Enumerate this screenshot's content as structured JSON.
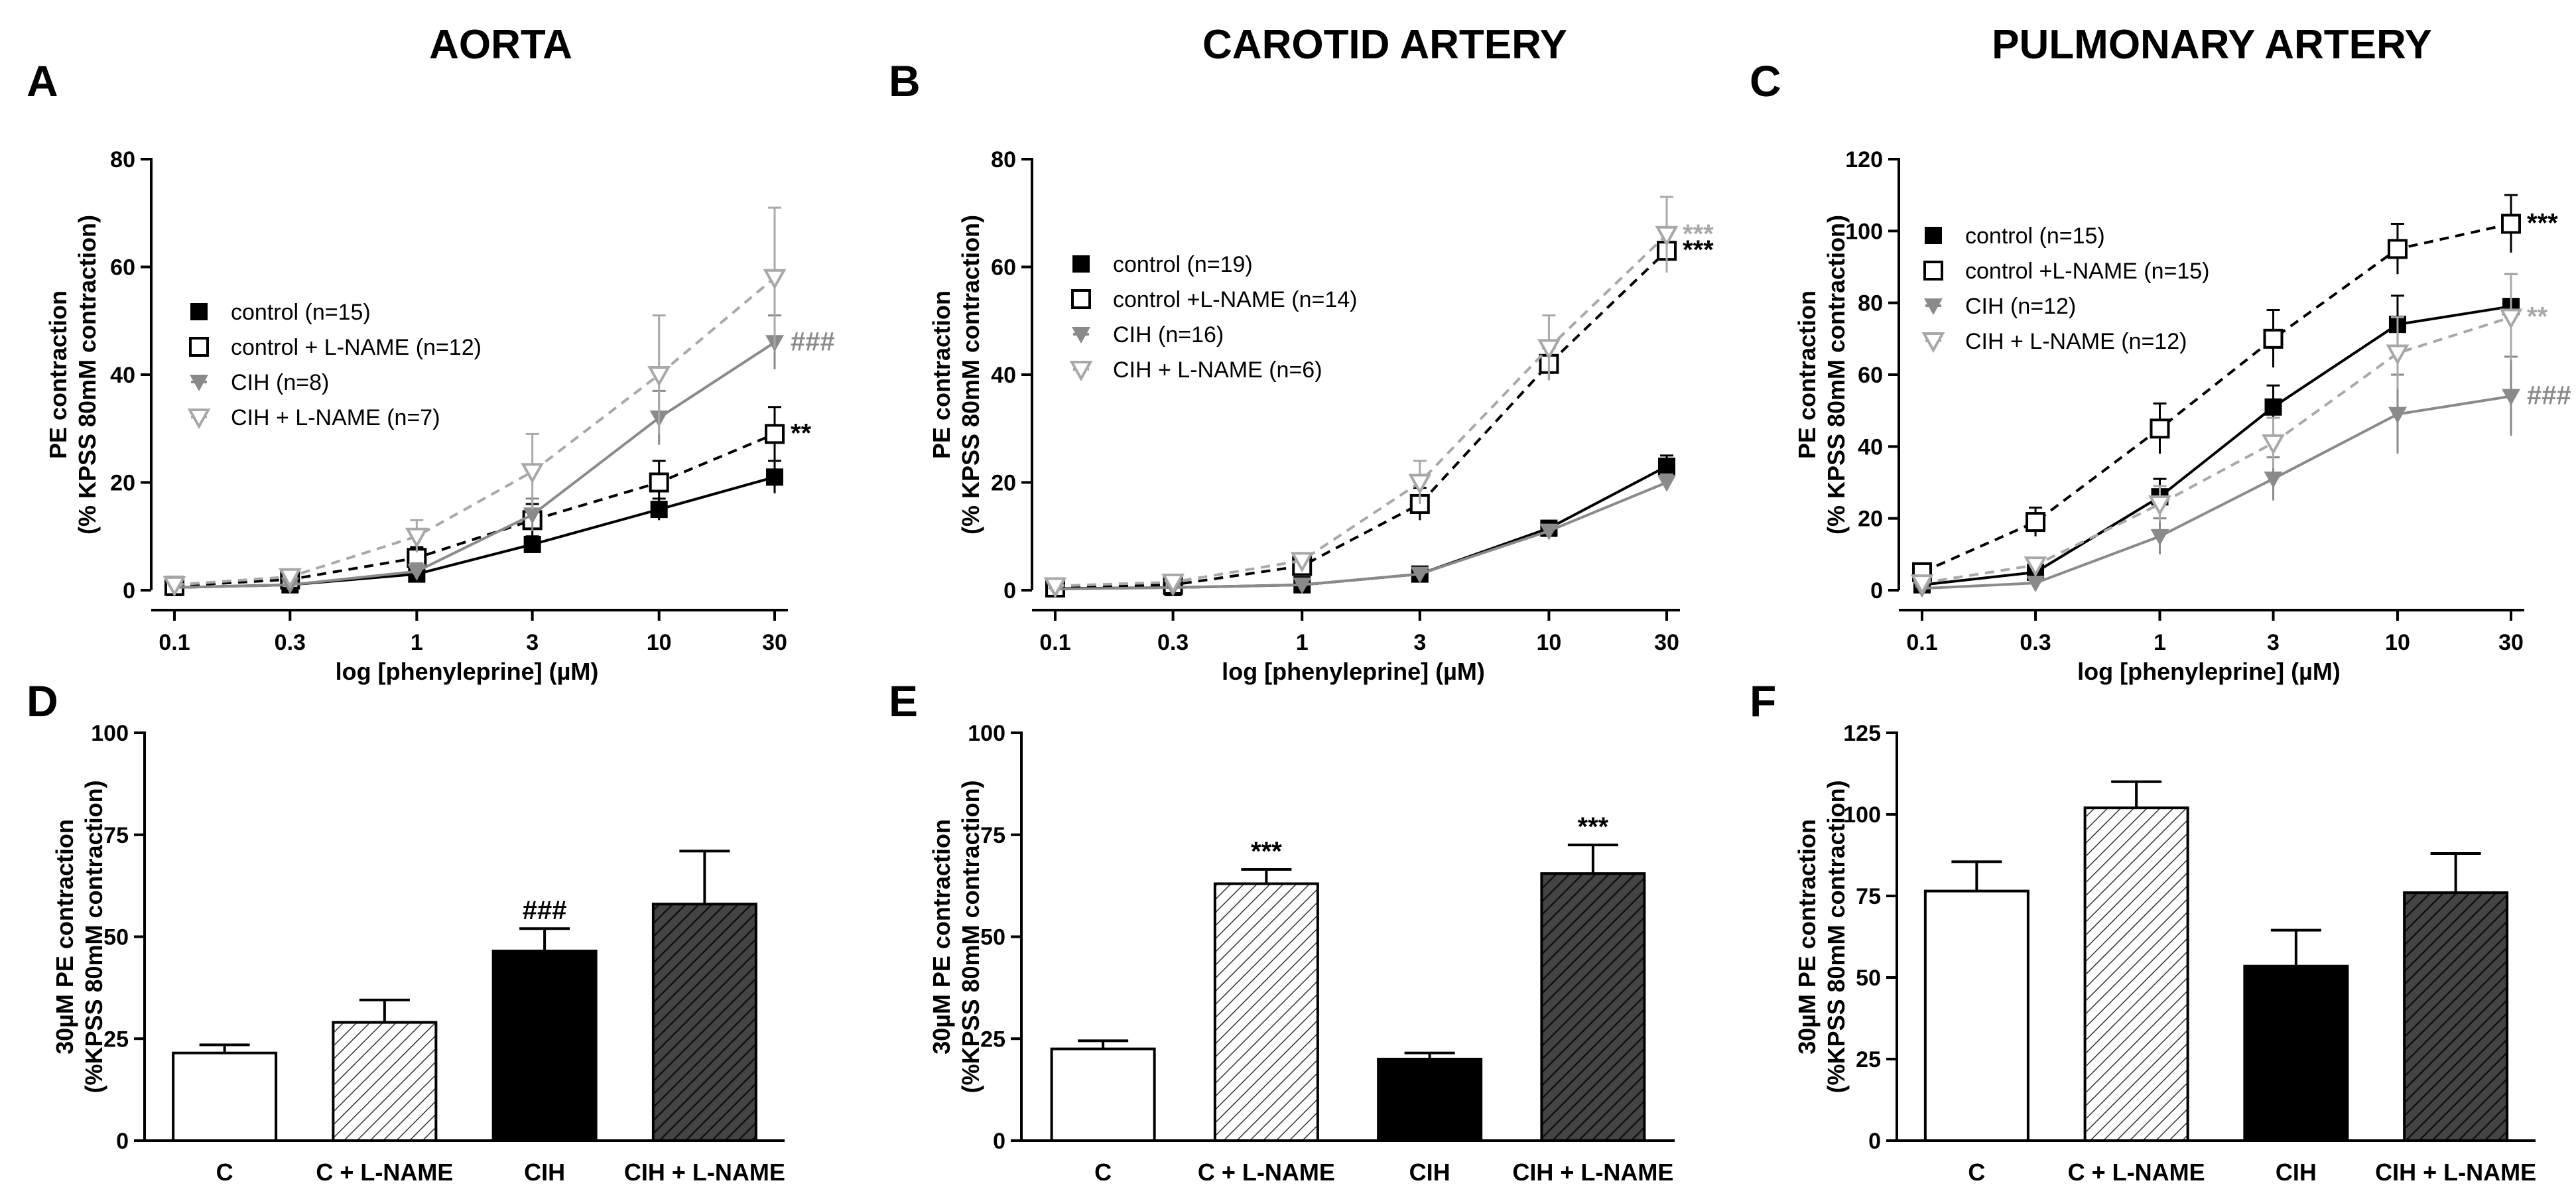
{
  "figure": {
    "colors": {
      "black": "#000000",
      "gray": "#8a8a8a",
      "lightgray": "#a8a8a8",
      "white": "#ffffff",
      "darkgray": "#444444"
    }
  },
  "chart_data": [
    {
      "id": "A",
      "panel_letter": "A",
      "title": "AORTA",
      "type": "line",
      "x": [
        0.1,
        0.3,
        1,
        3,
        10,
        30
      ],
      "xticks": [
        "0.1",
        "0.3",
        "1",
        "3",
        "10",
        "30"
      ],
      "xlabel": "log [phenyleprine] (µM)",
      "ylabel": [
        "PE contraction",
        "(% KPSS 80mM contraction)"
      ],
      "ylim": [
        0,
        80
      ],
      "yticks": [
        0,
        20,
        40,
        60,
        80
      ],
      "legend_position": "middle-left",
      "series": [
        {
          "name": "control (n=15)",
          "color": "#000000",
          "marker": "square-filled",
          "dash": "solid",
          "values": [
            0.5,
            1.0,
            3.0,
            8.5,
            15.0,
            21.0
          ],
          "errors": [
            0.5,
            0.5,
            1.0,
            1.5,
            2.0,
            3.0
          ],
          "annotation": ""
        },
        {
          "name": "control + L-NAME (n=12)",
          "color": "#000000",
          "marker": "square-open",
          "dash": "dashed",
          "values": [
            0.8,
            2.0,
            6.0,
            13.0,
            20.0,
            29.0
          ],
          "errors": [
            0.5,
            1.0,
            2.0,
            3.0,
            4.0,
            5.0
          ],
          "annotation": "**"
        },
        {
          "name": "CIH (n=8)",
          "color": "#8a8a8a",
          "marker": "triangle-down-filled",
          "dash": "solid",
          "values": [
            0.5,
            1.0,
            3.5,
            14.0,
            32.0,
            46.0
          ],
          "errors": [
            0.5,
            0.5,
            1.5,
            3.0,
            5.0,
            5.0
          ],
          "annotation": "###"
        },
        {
          "name": "CIH + L-NAME (n=7)",
          "color": "#a8a8a8",
          "marker": "triangle-down-open",
          "dash": "dashed",
          "values": [
            1.0,
            2.5,
            10.0,
            22.0,
            40.0,
            58.0
          ],
          "errors": [
            0.5,
            1.0,
            3.0,
            7.0,
            11.0,
            13.0
          ],
          "annotation": ""
        }
      ]
    },
    {
      "id": "B",
      "panel_letter": "B",
      "title": "CAROTID ARTERY",
      "type": "line",
      "x": [
        0.1,
        0.3,
        1,
        3,
        10,
        30
      ],
      "xticks": [
        "0.1",
        "0.3",
        "1",
        "3",
        "10",
        "30"
      ],
      "xlabel": "log [phenyleprine] (µM)",
      "ylabel": [
        "PE contraction",
        "(% KPSS 80mM contraction)"
      ],
      "ylim": [
        0,
        80
      ],
      "yticks": [
        0,
        20,
        40,
        60,
        80
      ],
      "legend_position": "middle-left",
      "series": [
        {
          "name": "control (n=19)",
          "color": "#000000",
          "marker": "square-filled",
          "dash": "solid",
          "values": [
            0.3,
            0.5,
            1.0,
            3.0,
            11.5,
            23.0
          ],
          "errors": [
            0.3,
            0.5,
            0.5,
            0.5,
            1.0,
            2.0
          ],
          "annotation": ""
        },
        {
          "name": "control +L-NAME (n=14)",
          "color": "#000000",
          "marker": "square-open",
          "dash": "dashed",
          "values": [
            0.5,
            1.0,
            4.5,
            16.0,
            42.0,
            63.0
          ],
          "errors": [
            0.5,
            0.5,
            1.0,
            3.0,
            3.0,
            4.0
          ],
          "annotation": "***"
        },
        {
          "name": "CIH (n=16)",
          "color": "#8a8a8a",
          "marker": "triangle-down-filled",
          "dash": "solid",
          "values": [
            0.2,
            0.5,
            1.0,
            3.0,
            11.0,
            20.0
          ],
          "errors": [
            0.2,
            0.3,
            0.5,
            0.5,
            1.0,
            1.5
          ],
          "annotation": ""
        },
        {
          "name": "CIH + L-NAME (n=6)",
          "color": "#a8a8a8",
          "marker": "triangle-down-open",
          "dash": "dashed",
          "values": [
            0.8,
            1.5,
            5.5,
            20.0,
            45.0,
            66.0
          ],
          "errors": [
            0.5,
            0.5,
            1.0,
            4.0,
            6.0,
            7.0
          ],
          "annotation": "***"
        }
      ]
    },
    {
      "id": "C",
      "panel_letter": "C",
      "title": "PULMONARY ARTERY",
      "type": "line",
      "x": [
        0.1,
        0.3,
        1,
        3,
        10,
        30
      ],
      "xticks": [
        "0.1",
        "0.3",
        "1",
        "3",
        "10",
        "30"
      ],
      "xlabel": "log [phenyleprine] (µM)",
      "ylabel": [
        "PE contraction",
        "(% KPSS 80mM contraction)"
      ],
      "ylim": [
        0,
        120
      ],
      "yticks": [
        0,
        20,
        40,
        60,
        80,
        100,
        120
      ],
      "legend_position": "top-left",
      "series": [
        {
          "name": "control (n=15)",
          "color": "#000000",
          "marker": "square-filled",
          "dash": "solid",
          "values": [
            1.5,
            5.0,
            26.0,
            51.0,
            74.0,
            79.0
          ],
          "errors": [
            1.0,
            2.0,
            5.0,
            6.0,
            8.0,
            9.0
          ],
          "annotation": ""
        },
        {
          "name": "control +L-NAME (n=15)",
          "color": "#000000",
          "marker": "square-open",
          "dash": "dashed",
          "values": [
            5.0,
            19.0,
            45.0,
            70.0,
            95.0,
            102.0
          ],
          "errors": [
            1.5,
            4.0,
            7.0,
            8.0,
            7.0,
            8.0
          ],
          "annotation": "***"
        },
        {
          "name": "CIH (n=12)",
          "color": "#8a8a8a",
          "marker": "triangle-down-filled",
          "dash": "solid",
          "values": [
            0.5,
            2.0,
            15.0,
            31.0,
            49.0,
            54.0
          ],
          "errors": [
            0.5,
            1.0,
            5.0,
            6.0,
            11.0,
            11.0
          ],
          "annotation": "###"
        },
        {
          "name": "CIH + L-NAME (n=12)",
          "color": "#a8a8a8",
          "marker": "triangle-down-open",
          "dash": "dashed",
          "values": [
            2.0,
            7.0,
            24.0,
            41.0,
            66.0,
            76.0
          ],
          "errors": [
            1.0,
            2.0,
            5.0,
            7.0,
            10.0,
            12.0
          ],
          "annotation": "**"
        }
      ]
    },
    {
      "id": "D",
      "panel_letter": "D",
      "type": "bar",
      "categories": [
        "C",
        "C + L-NAME",
        "CIH",
        "CIH + L-NAME"
      ],
      "values": [
        21.5,
        29.0,
        46.5,
        58.0
      ],
      "errors": [
        2.0,
        5.5,
        5.5,
        13.0
      ],
      "annotations": [
        "",
        "",
        "###",
        ""
      ],
      "fills": [
        "white",
        "hatch-light",
        "black",
        "hatch-dark"
      ],
      "ylabel": [
        "30µM PE contraction",
        "(%KPSS 80mM contraction)"
      ],
      "ylim": [
        0,
        100
      ],
      "yticks": [
        0,
        25,
        50,
        75,
        100
      ]
    },
    {
      "id": "E",
      "panel_letter": "E",
      "type": "bar",
      "categories": [
        "C",
        "C + L-NAME",
        "CIH",
        "CIH + L-NAME"
      ],
      "values": [
        22.5,
        63.0,
        20.0,
        65.5
      ],
      "errors": [
        2.0,
        3.5,
        1.5,
        7.0
      ],
      "annotations": [
        "",
        "***",
        "",
        "***"
      ],
      "fills": [
        "white",
        "hatch-light",
        "black",
        "hatch-dark"
      ],
      "ylabel": [
        "30µM PE contraction",
        "(%KPSS 80mM contraction)"
      ],
      "ylim": [
        0,
        100
      ],
      "yticks": [
        0,
        25,
        50,
        75,
        100
      ]
    },
    {
      "id": "F",
      "panel_letter": "F",
      "type": "bar",
      "categories": [
        "C",
        "C + L-NAME",
        "CIH",
        "CIH + L-NAME"
      ],
      "values": [
        76.5,
        102.0,
        53.5,
        76.0
      ],
      "errors": [
        9.0,
        8.0,
        11.0,
        12.0
      ],
      "annotations": [
        "",
        "",
        "",
        ""
      ],
      "fills": [
        "white",
        "hatch-light",
        "black",
        "hatch-dark"
      ],
      "ylabel": [
        "30µM PE contraction",
        "(%KPSS 80mM contraction)"
      ],
      "ylim": [
        0,
        125
      ],
      "yticks": [
        0,
        25,
        50,
        75,
        100,
        125
      ]
    }
  ]
}
